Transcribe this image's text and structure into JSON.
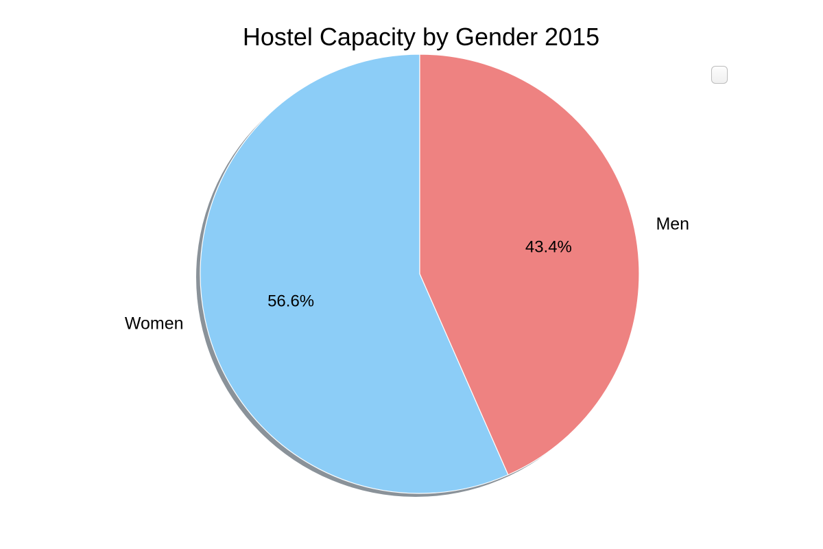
{
  "chart_data": {
    "type": "pie",
    "title": "Hostel Capacity by Gender 2015",
    "legend": "top-right",
    "shadow": true,
    "start_angle_deg": 90,
    "direction": "counterclockwise",
    "slices": [
      {
        "label": "Women",
        "value": 56.6,
        "pct_label": "56.6%",
        "color": "#8ccdf7"
      },
      {
        "label": "Men",
        "value": 43.4,
        "pct_label": "43.4%",
        "color": "#ee8281"
      }
    ]
  }
}
